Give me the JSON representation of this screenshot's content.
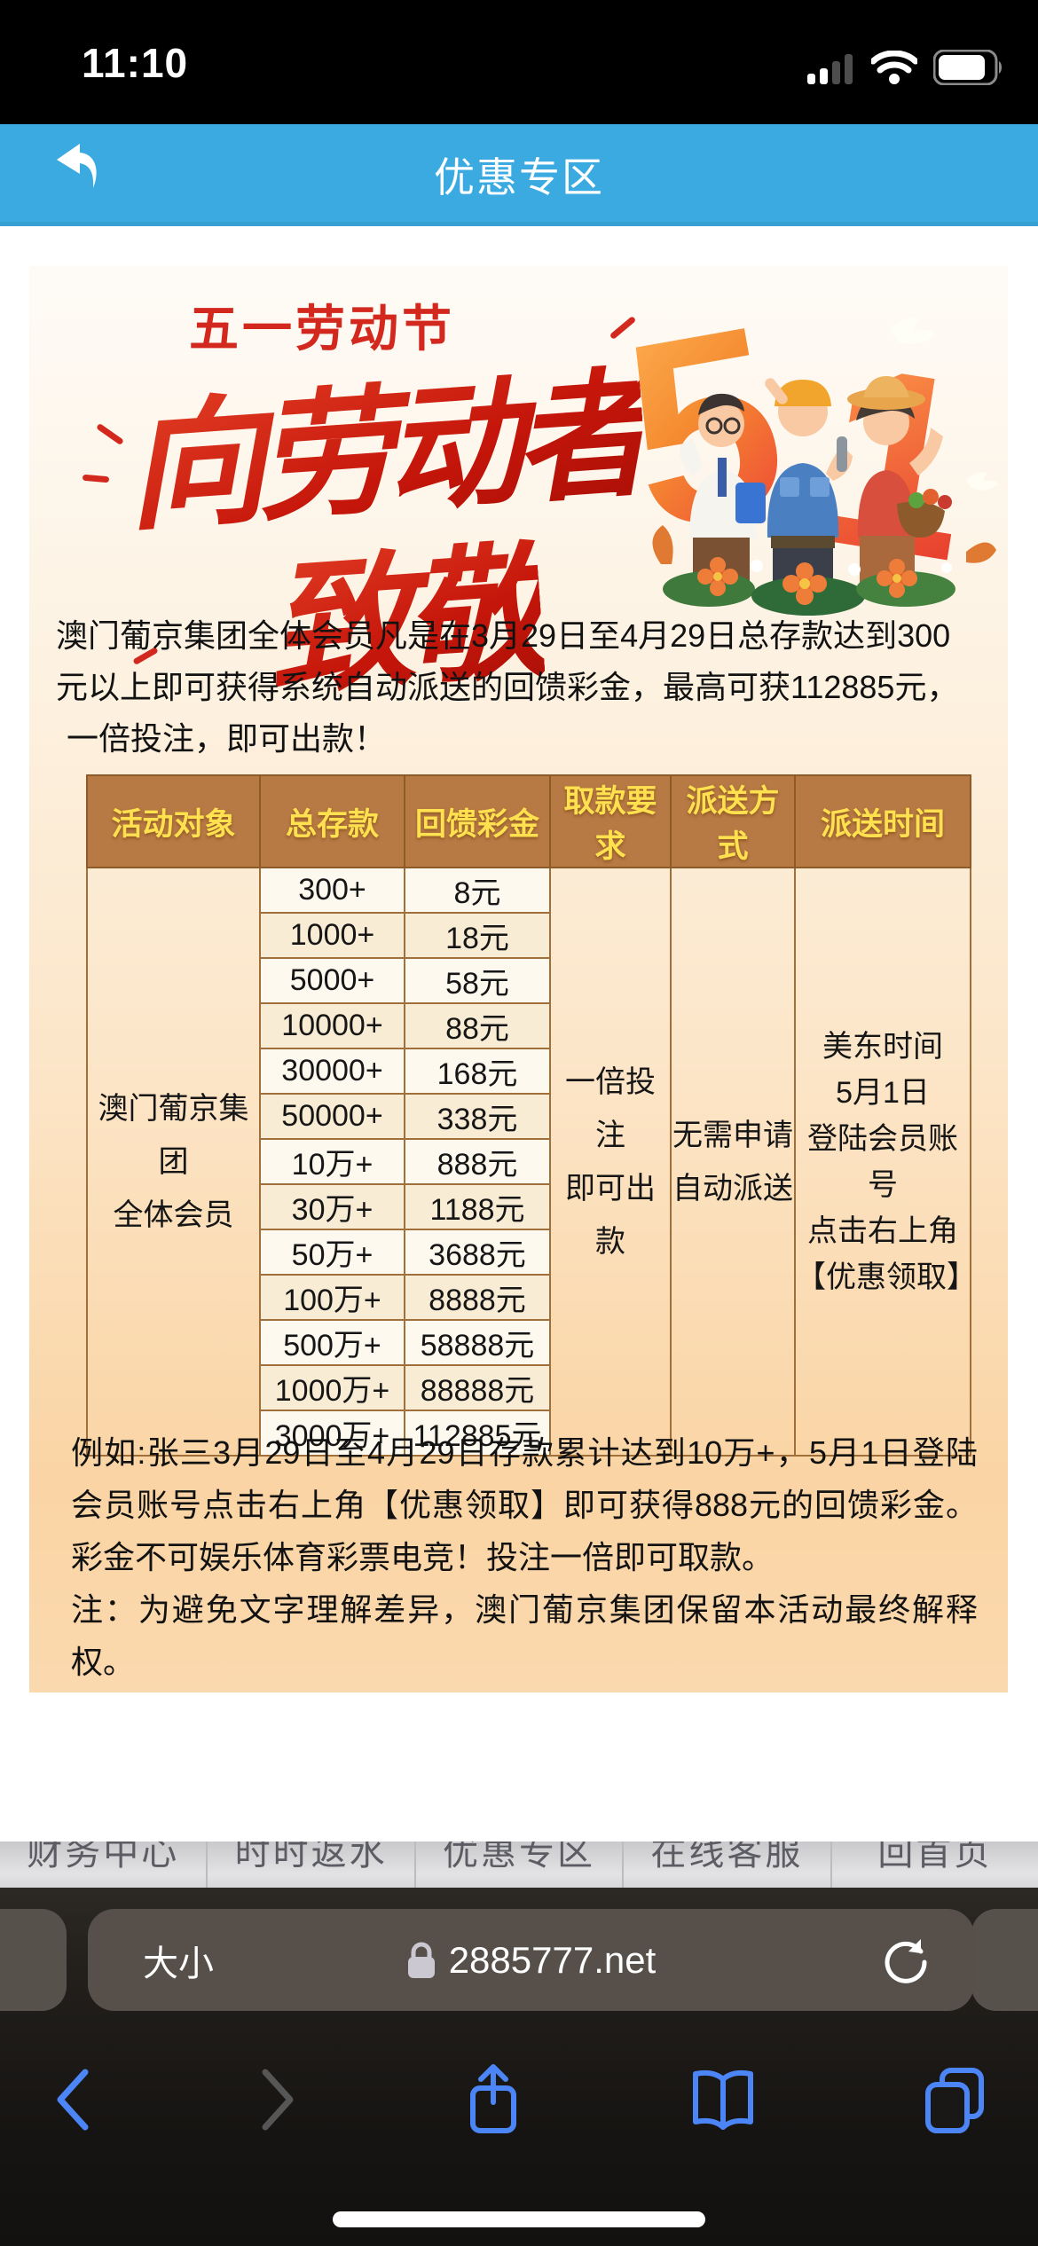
{
  "status_bar": {
    "time": "11:10"
  },
  "header": {
    "title": "优惠专区"
  },
  "banner": {
    "subtitle": "五一劳动节",
    "calligraphy_line1": "向劳动者",
    "calligraphy_line2": "致敬",
    "number_left": "5",
    "number_right": "1"
  },
  "intro": {
    "lines": [
      "澳门葡京集团全体会员凡是在3月29日至4月29日总存款达到300",
      "元以上即可获得系统自动派送的回馈彩金，最高可获112885元，",
      "一倍投注，即可出款！"
    ]
  },
  "table": {
    "headers": [
      "活动对象",
      "总存款",
      "回馈彩金",
      "取款要求",
      "派送方式",
      "派送时间"
    ],
    "subject_lines": [
      "澳门葡京集团",
      "全体会员"
    ],
    "withdrawal_lines": [
      "一倍投注",
      "即可出款"
    ],
    "delivery_lines": [
      "无需申请",
      "自动派送"
    ],
    "time_lines": [
      "美东时间",
      "5月1日",
      "登陆会员账号",
      "点击右上角",
      "【优惠领取】"
    ],
    "rows": [
      {
        "deposit": "300+",
        "bonus": "8元"
      },
      {
        "deposit": "1000+",
        "bonus": "18元"
      },
      {
        "deposit": "5000+",
        "bonus": "58元"
      },
      {
        "deposit": "10000+",
        "bonus": "88元"
      },
      {
        "deposit": "30000+",
        "bonus": "168元"
      },
      {
        "deposit": "50000+",
        "bonus": "338元"
      },
      {
        "deposit": "10万+",
        "bonus": "888元"
      },
      {
        "deposit": "30万+",
        "bonus": "1188元"
      },
      {
        "deposit": "50万+",
        "bonus": "3688元"
      },
      {
        "deposit": "100万+",
        "bonus": "8888元"
      },
      {
        "deposit": "500万+",
        "bonus": "58888元"
      },
      {
        "deposit": "1000万+",
        "bonus": "88888元"
      },
      {
        "deposit": "3000万+",
        "bonus": "112885元"
      }
    ]
  },
  "example": {
    "lines": [
      "例如:张三3月29日至4月29日存款累计达到10万+，5月1日登陆会员账号点击右上角【优惠领取】即可获得888元的回馈彩金。彩金不可娱乐体育彩票电竞！投注一倍即可取款。",
      "注：为避免文字理解差异，澳门葡京集团保留本活动最终解释权。"
    ]
  },
  "site_nav": {
    "items": [
      {
        "label": "财务中心"
      },
      {
        "label": "时时返水"
      },
      {
        "label": "优惠专区"
      },
      {
        "label": "在线客服"
      },
      {
        "label": "回首页"
      }
    ]
  },
  "browser": {
    "text_size_label": "大小",
    "url": "2885777.net"
  },
  "colors": {
    "accent_blue": "#3baae1",
    "brand_red": "#d3281d",
    "orange_51": "#f26522",
    "table_header_bg": "#b87a44",
    "table_header_text": "#ffe14f",
    "safari_icon_blue": "#4c86f6"
  }
}
